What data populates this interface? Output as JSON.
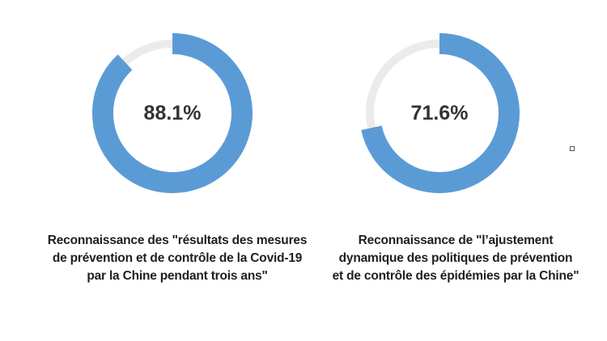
{
  "chart_data": [
    {
      "type": "pie",
      "variant": "donut",
      "value_label": "88.1%",
      "values": [
        88.1,
        11.9
      ],
      "colors": [
        "#5b9bd5",
        "#ebebeb"
      ],
      "caption_lines": [
        "Reconnaissance des \"résultats des mesures",
        "de prévention et de contrôle de la Covid-19",
        "par la Chine pendant trois ans\""
      ]
    },
    {
      "type": "pie",
      "variant": "donut",
      "value_label": "71.6%",
      "values": [
        71.6,
        28.4
      ],
      "colors": [
        "#5b9bd5",
        "#ebebeb"
      ],
      "caption_lines": [
        "Reconnaissance de \"l’ajustement",
        "dynamique des politiques de prévention",
        "et de contrôle des épidémies par la Chine\""
      ]
    }
  ]
}
